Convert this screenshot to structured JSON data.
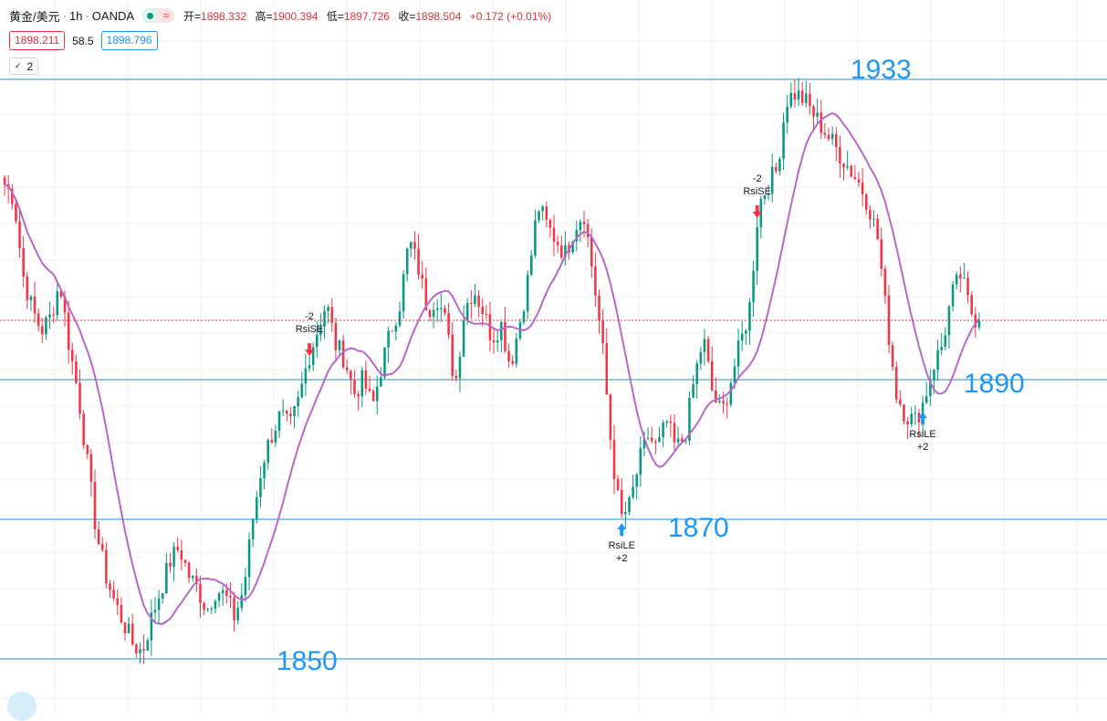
{
  "header": {
    "symbol": "黄金/美元",
    "interval": "1h",
    "exchange": "OANDA",
    "ohlc": {
      "open_label": "开",
      "open": "1898.332",
      "high_label": "高",
      "high": "1900.394",
      "low_label": "低",
      "low": "1897.726",
      "close_label": "收",
      "close": "1898.504",
      "change": "+0.172 (+0.01%)"
    }
  },
  "quote": {
    "bid": "1898.211",
    "spread": "58.5",
    "ask": "1898.796"
  },
  "indicator_toggle": {
    "count": "2"
  },
  "colors": {
    "up": "#089981",
    "down": "#f23645",
    "ma": "#b868c8",
    "level": "#2a8ec8",
    "grid": "#eef0f3",
    "level_text": "#2196f3"
  },
  "chart_data": {
    "type": "candlestick",
    "interval": "1h",
    "ylim": [
      1847,
      1939
    ],
    "grid": true,
    "levels": [
      {
        "price": 1933,
        "label": "1933"
      },
      {
        "price": 1890,
        "label": "1890"
      },
      {
        "price": 1870,
        "label": "1870"
      },
      {
        "price": 1850,
        "label": "1850"
      }
    ],
    "current_price": 1898.5,
    "price_path": [
      1918,
      1916,
      1905,
      1900,
      1897,
      1899,
      1904,
      1895,
      1888,
      1878,
      1868,
      1862,
      1858,
      1855,
      1852,
      1851,
      1856,
      1860,
      1864,
      1866,
      1862,
      1860,
      1857,
      1860,
      1859,
      1856,
      1860,
      1870,
      1878,
      1882,
      1885,
      1883,
      1887,
      1893,
      1897,
      1901,
      1895,
      1893,
      1888,
      1890,
      1886,
      1892,
      1897,
      1901,
      1910,
      1906,
      1900,
      1902,
      1898,
      1889,
      1900,
      1903,
      1900,
      1896,
      1898,
      1892,
      1898,
      1905,
      1915,
      1912,
      1910,
      1908,
      1912,
      1914,
      1905,
      1895,
      1880,
      1870,
      1872,
      1878,
      1882,
      1880,
      1884,
      1880,
      1882,
      1890,
      1896,
      1888,
      1885,
      1890,
      1895,
      1900,
      1915,
      1918,
      1920,
      1930,
      1931,
      1930,
      1928,
      1926,
      1924,
      1922,
      1920,
      1918,
      1915,
      1910,
      1898,
      1888,
      1885,
      1884,
      1887,
      1892,
      1895,
      1902,
      1905,
      1900,
      1898
    ],
    "signals": [
      {
        "type": "short",
        "label": "RsiSE",
        "qty": "-2",
        "index": 33
      },
      {
        "type": "long",
        "label": "RsiLE",
        "qty": "+2",
        "index": 67
      },
      {
        "type": "short",
        "label": "RsiSE",
        "qty": "-2",
        "index": 82
      },
      {
        "type": "long",
        "label": "RsiLE",
        "qty": "+2",
        "index": 100
      }
    ]
  }
}
